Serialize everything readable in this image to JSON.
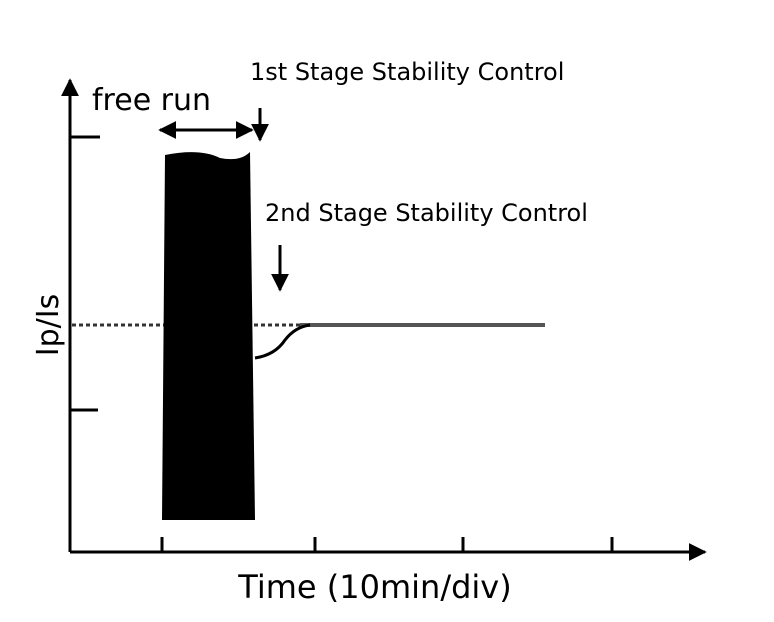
{
  "annotations": {
    "free_run": "free run",
    "stage1": "1st Stage Stability Control",
    "stage2": "2nd Stage Stability Control"
  },
  "axes": {
    "y_label": "Ip/Is",
    "x_label": "Time (10min/div)"
  }
}
